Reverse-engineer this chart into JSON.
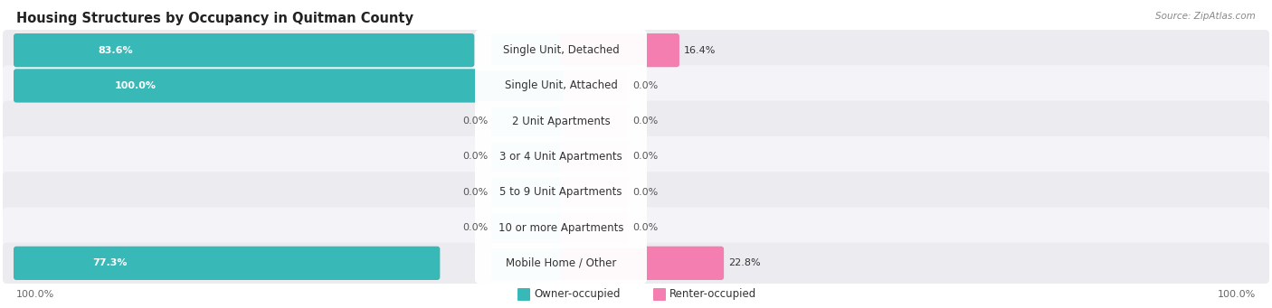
{
  "title": "Housing Structures by Occupancy in Quitman County",
  "source": "Source: ZipAtlas.com",
  "categories": [
    "Single Unit, Detached",
    "Single Unit, Attached",
    "2 Unit Apartments",
    "3 or 4 Unit Apartments",
    "5 to 9 Unit Apartments",
    "10 or more Apartments",
    "Mobile Home / Other"
  ],
  "owner_pct": [
    83.6,
    100.0,
    0.0,
    0.0,
    0.0,
    0.0,
    77.3
  ],
  "renter_pct": [
    16.4,
    0.0,
    0.0,
    0.0,
    0.0,
    0.0,
    22.8
  ],
  "owner_color": "#39b8b8",
  "owner_light_color": "#88d8d8",
  "renter_color": "#f47eb0",
  "renter_light_color": "#f9b8d0",
  "row_bg_odd": "#ebebf0",
  "row_bg_even": "#f4f4f8",
  "title_fontsize": 10.5,
  "source_fontsize": 7.5,
  "label_fontsize": 8.5,
  "pct_fontsize": 8.0,
  "legend_fontsize": 8.5
}
